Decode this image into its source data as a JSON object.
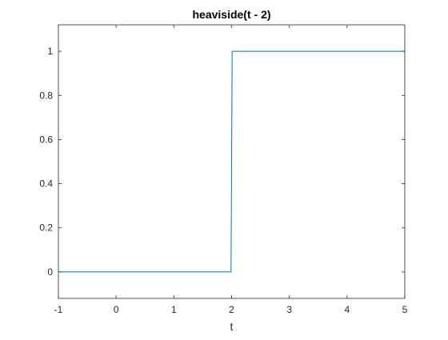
{
  "chart_data": {
    "type": "line",
    "title": "heaviside(t - 2)",
    "xlabel": "t",
    "ylabel": "",
    "xlim": [
      -1,
      5
    ],
    "ylim": [
      -0.12,
      1.12
    ],
    "xticks": [
      -1,
      0,
      1,
      2,
      3,
      4,
      5
    ],
    "xtick_labels": [
      "-1",
      "0",
      "1",
      "2",
      "3",
      "4",
      "5"
    ],
    "yticks": [
      0,
      0.2,
      0.4,
      0.6,
      0.8,
      1
    ],
    "ytick_labels": [
      "0",
      "0.2",
      "0.4",
      "0.6",
      "0.8",
      "1"
    ],
    "grid": false,
    "series": [
      {
        "color": "#0072bd",
        "x": [
          -1,
          1.99,
          2.01,
          5
        ],
        "y": [
          0,
          0,
          1,
          1
        ]
      }
    ]
  }
}
